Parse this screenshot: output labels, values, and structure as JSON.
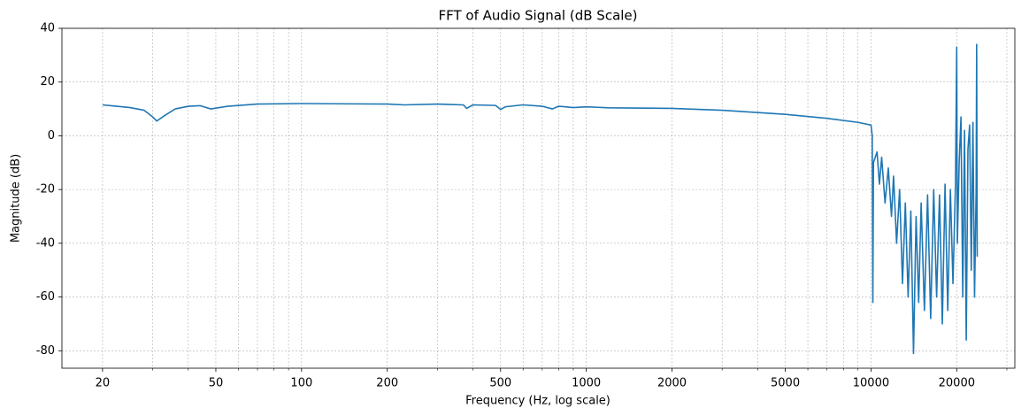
{
  "chart_data": {
    "type": "line",
    "title": "FFT of Audio Signal (dB Scale)",
    "x_label": "Frequency (Hz, log scale)",
    "y_label": "Magnitude (dB)",
    "xscale": "log",
    "grid": true,
    "xlim": [
      14.4,
      32000
    ],
    "ylim": [
      -86.5,
      40
    ],
    "xticks": [
      20,
      50,
      100,
      200,
      500,
      1000,
      2000,
      5000,
      10000,
      20000
    ],
    "xticks_minor": [
      30,
      40,
      60,
      70,
      80,
      90,
      300,
      400,
      600,
      700,
      800,
      900,
      3000,
      4000,
      6000,
      7000,
      8000,
      9000,
      30000
    ],
    "yticks": [
      -80,
      -60,
      -40,
      -20,
      0,
      20,
      40
    ],
    "series": [
      {
        "name": "FFT",
        "color": "#1f77b4",
        "x": [
          20,
          25,
          28,
          30,
          31,
          33,
          36,
          40,
          44,
          48,
          55,
          70,
          100,
          200,
          230,
          300,
          370,
          380,
          400,
          480,
          500,
          520,
          600,
          700,
          760,
          800,
          900,
          1000,
          1100,
          1200,
          2000,
          3000,
          5000,
          7000,
          9000,
          10000,
          10100,
          10150,
          10200,
          10500,
          10700,
          10900,
          11200,
          11500,
          11800,
          12000,
          12300,
          12600,
          12900,
          13200,
          13500,
          13800,
          14100,
          14400,
          14700,
          15000,
          15400,
          15800,
          16200,
          16600,
          17000,
          17400,
          17800,
          18200,
          18600,
          19000,
          19400,
          19800,
          20000,
          20100,
          20400,
          20700,
          21000,
          21300,
          21600,
          21900,
          22200,
          22500,
          22800,
          23100,
          23400,
          23500,
          23600
        ],
        "values": [
          11.5,
          10.5,
          9.5,
          7,
          5.5,
          7.5,
          10,
          11,
          11.2,
          10,
          11,
          11.8,
          12,
          11.8,
          11.5,
          11.8,
          11.5,
          10.2,
          11.5,
          11.3,
          9.8,
          10.8,
          11.5,
          11,
          10,
          11,
          10.5,
          10.8,
          10.6,
          10.4,
          10.2,
          9.5,
          8,
          6.5,
          5,
          4,
          0,
          -62,
          -10,
          -6,
          -18,
          -8,
          -25,
          -12,
          -30,
          -15,
          -40,
          -20,
          -55,
          -25,
          -60,
          -28,
          -81,
          -30,
          -62,
          -25,
          -65,
          -22,
          -68,
          -20,
          -60,
          -22,
          -70,
          -18,
          -65,
          -20,
          -55,
          -18,
          33,
          -40,
          -10,
          7,
          -60,
          2,
          -76,
          -5,
          4,
          -50,
          5,
          -60,
          -20,
          34,
          -45
        ]
      }
    ]
  }
}
